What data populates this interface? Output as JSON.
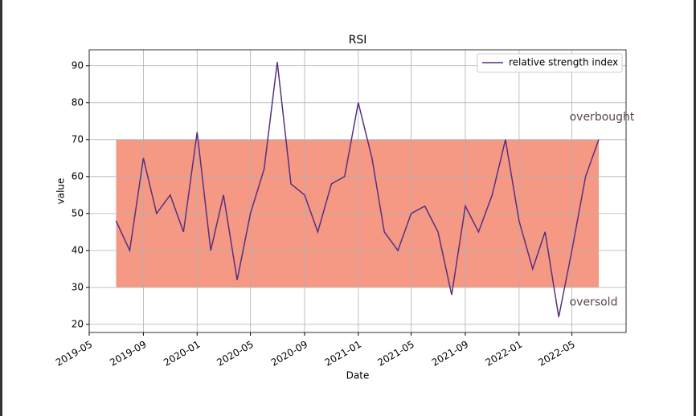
{
  "chart_data": {
    "type": "line",
    "title": "RSI",
    "xlabel": "Date",
    "ylabel": "value",
    "x": [
      "2019-07",
      "2019-08",
      "2019-09",
      "2019-10",
      "2019-11",
      "2019-12",
      "2020-01",
      "2020-02",
      "2020-03",
      "2020-04",
      "2020-05",
      "2020-06",
      "2020-07",
      "2020-08",
      "2020-09",
      "2020-10",
      "2020-11",
      "2020-12",
      "2021-01",
      "2021-02",
      "2021-03",
      "2021-04",
      "2021-05",
      "2021-06",
      "2021-07",
      "2021-08",
      "2021-09",
      "2021-10",
      "2021-11",
      "2021-12",
      "2022-01",
      "2022-02",
      "2022-03",
      "2022-04",
      "2022-05",
      "2022-06",
      "2022-07"
    ],
    "series": [
      {
        "name": "relative strength index",
        "color": "#56307f",
        "values": [
          48,
          40,
          65,
          50,
          55,
          45,
          72,
          40,
          55,
          32,
          50,
          62,
          91,
          58,
          55,
          45,
          58,
          60,
          80,
          65,
          45,
          40,
          50,
          52,
          45,
          28,
          52,
          45,
          55,
          70,
          48,
          35,
          45,
          22,
          40,
          60,
          70
        ]
      }
    ],
    "band": {
      "low": 30,
      "high": 70,
      "color": "#f4937e"
    },
    "annotations": [
      {
        "text": "overbought",
        "x": "2022-05",
        "y": 76
      },
      {
        "text": "oversold",
        "x": "2022-05",
        "y": 26
      }
    ],
    "xlim": [
      "2019-05",
      "2022-09"
    ],
    "xticks": [
      "2019-05",
      "2019-09",
      "2020-01",
      "2020-05",
      "2020-09",
      "2021-01",
      "2021-05",
      "2021-09",
      "2022-01",
      "2022-05"
    ],
    "ylim": [
      17.8,
      94.3
    ],
    "yticks": [
      20,
      30,
      40,
      50,
      60,
      70,
      80,
      90
    ],
    "grid": true,
    "legend": "upper right"
  }
}
